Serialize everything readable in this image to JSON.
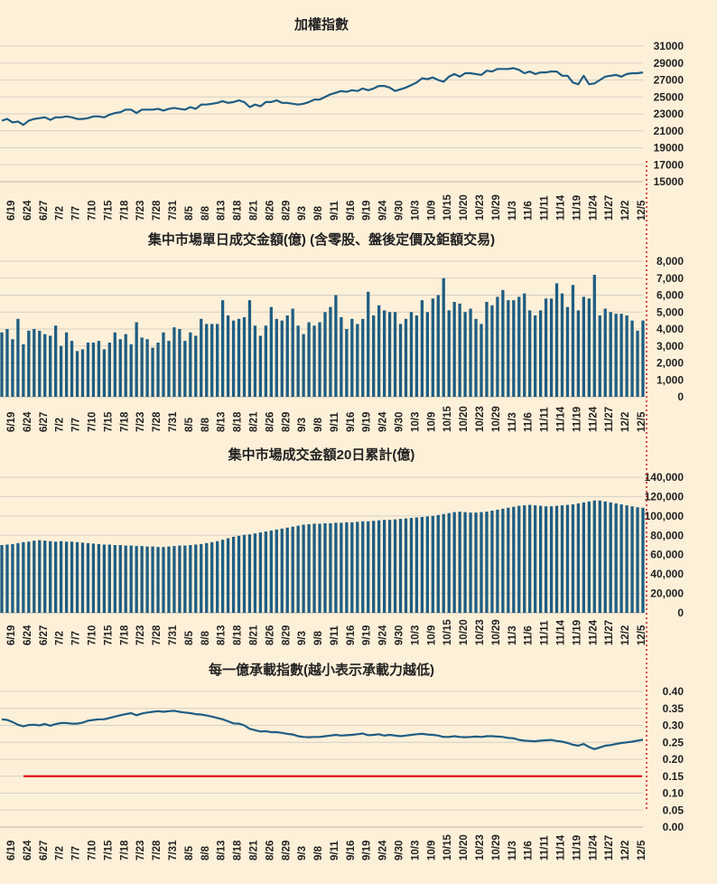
{
  "colors": {
    "background": "#fdf0d9",
    "series": "#1f5d82",
    "reference": "#e0141c",
    "marker": "#d0242b",
    "grid": "#d6d0c4"
  },
  "x_labels": [
    "6/19",
    "6/24",
    "6/27",
    "7/2",
    "7/7",
    "7/10",
    "7/15",
    "7/18",
    "7/23",
    "7/28",
    "7/31",
    "8/5",
    "8/8",
    "8/13",
    "8/18",
    "8/21",
    "8/26",
    "8/29",
    "9/3",
    "9/8",
    "9/11",
    "9/16",
    "9/19",
    "9/24",
    "9/30",
    "10/3",
    "10/9",
    "10/15",
    "10/20",
    "10/23",
    "10/29",
    "11/3",
    "11/6",
    "11/11",
    "11/14",
    "11/19",
    "11/24",
    "11/27",
    "12/2",
    "12/5"
  ],
  "chart_data": [
    {
      "id": "taiex",
      "type": "line",
      "title": "加權指數",
      "ylim": [
        15000,
        31000
      ],
      "yticks": [
        15000,
        17000,
        19000,
        21000,
        23000,
        25000,
        27000,
        29000,
        31000
      ],
      "series": [
        {
          "name": "加權指數",
          "values": [
            22200,
            22400,
            22000,
            22100,
            21700,
            22200,
            22400,
            22500,
            22600,
            22300,
            22600,
            22600,
            22700,
            22600,
            22400,
            22400,
            22500,
            22700,
            22700,
            22600,
            22900,
            23100,
            23200,
            23500,
            23500,
            23100,
            23500,
            23500,
            23500,
            23600,
            23400,
            23600,
            23700,
            23600,
            23500,
            23800,
            23600,
            24100,
            24100,
            24200,
            24300,
            24500,
            24300,
            24400,
            24600,
            24400,
            23800,
            24100,
            23900,
            24400,
            24400,
            24600,
            24300,
            24300,
            24200,
            24100,
            24200,
            24400,
            24700,
            24700,
            25000,
            25300,
            25500,
            25700,
            25600,
            25800,
            25700,
            26000,
            25800,
            26000,
            26300,
            26300,
            26100,
            25700,
            25900,
            26100,
            26400,
            26700,
            27200,
            27100,
            27300,
            27000,
            26800,
            27400,
            27700,
            27400,
            27800,
            27800,
            27700,
            27600,
            28100,
            28000,
            28300,
            28300,
            28300,
            28400,
            28200,
            27800,
            28000,
            27700,
            27900,
            27900,
            28000,
            28000,
            27500,
            27500,
            26700,
            26500,
            27500,
            26500,
            26600,
            27000,
            27400,
            27500,
            27600,
            27400,
            27700,
            27800,
            27800,
            27900
          ]
        }
      ]
    },
    {
      "id": "turnover",
      "type": "bar",
      "title": "集中市場單日成交金額(億) (含零股、盤後定價及鉅額交易)",
      "ylim": [
        0,
        8000
      ],
      "yticks": [
        0,
        1000,
        2000,
        3000,
        4000,
        5000,
        6000,
        7000,
        8000
      ],
      "series": [
        {
          "name": "單日成交金額",
          "values": [
            3800,
            4000,
            3400,
            4600,
            3100,
            3900,
            4000,
            3900,
            3700,
            3600,
            4200,
            3000,
            3800,
            3300,
            2700,
            2800,
            3200,
            3200,
            3300,
            2800,
            3200,
            3800,
            3400,
            3700,
            3100,
            4400,
            3500,
            3400,
            2900,
            3200,
            3800,
            3300,
            4100,
            4000,
            3300,
            3800,
            3600,
            4600,
            4300,
            4300,
            4300,
            5700,
            4800,
            4500,
            4600,
            4700,
            5700,
            4200,
            3600,
            4200,
            5300,
            4600,
            4500,
            4800,
            5200,
            4200,
            3700,
            4400,
            4200,
            4400,
            5000,
            5300,
            6000,
            4700,
            4000,
            4600,
            4300,
            4600,
            6200,
            4800,
            5400,
            5100,
            5000,
            5000,
            4300,
            4600,
            5000,
            4800,
            5700,
            5000,
            5800,
            6000,
            7000,
            5100,
            5600,
            5500,
            5000,
            5200,
            4600,
            4300,
            5600,
            5400,
            5900,
            6300,
            5700,
            5700,
            5900,
            6100,
            5100,
            4800,
            5100,
            5800,
            5800,
            6700,
            6100,
            5300,
            6600,
            5100,
            5900,
            5800,
            7200,
            4800,
            5200,
            5000,
            4900,
            4900,
            4800,
            4500,
            3900,
            4500
          ]
        }
      ]
    },
    {
      "id": "turnover20",
      "type": "bar",
      "title": "集中市場成交金額20日累計(億)",
      "ylim": [
        0,
        140000
      ],
      "yticks": [
        0,
        20000,
        40000,
        60000,
        80000,
        100000,
        120000,
        140000
      ],
      "series": [
        {
          "name": "20日累計",
          "values": [
            70000,
            70500,
            71000,
            72000,
            73000,
            73500,
            74500,
            75000,
            74500,
            74000,
            73500,
            74000,
            73500,
            73500,
            73000,
            72500,
            72000,
            71500,
            71000,
            70500,
            70500,
            70000,
            70000,
            69500,
            69500,
            69000,
            69000,
            68500,
            68500,
            68000,
            68000,
            68500,
            69000,
            69500,
            69500,
            70000,
            70500,
            71000,
            72000,
            73000,
            74000,
            75500,
            77000,
            78500,
            79500,
            80500,
            81000,
            82000,
            83000,
            84000,
            85000,
            86000,
            87000,
            88000,
            89000,
            90000,
            91000,
            91500,
            92000,
            92000,
            92500,
            92500,
            93000,
            93000,
            93500,
            93500,
            94000,
            94500,
            94500,
            95000,
            95500,
            96000,
            96000,
            96500,
            97000,
            97500,
            98000,
            98500,
            99000,
            99500,
            100000,
            101000,
            102000,
            103000,
            104000,
            104500,
            104000,
            103500,
            103500,
            104000,
            104500,
            105500,
            106500,
            107500,
            108500,
            109500,
            110500,
            111000,
            111500,
            111000,
            110500,
            110000,
            110000,
            110500,
            111000,
            111500,
            112000,
            113000,
            114000,
            115000,
            116000,
            116000,
            115000,
            114000,
            113000,
            112000,
            111000,
            110000,
            109000,
            108500
          ]
        }
      ]
    },
    {
      "id": "ratio",
      "type": "line",
      "title": "每一億承載指數(越小表示承載力越低)",
      "ylim": [
        0,
        0.4
      ],
      "yticks": [
        "0.00",
        "0.05",
        "0.10",
        "0.15",
        "0.20",
        "0.25",
        "0.30",
        "0.35",
        "0.40"
      ],
      "reference_line": 0.15,
      "series": [
        {
          "name": "每一億承載指數",
          "values": [
            0.318,
            0.316,
            0.31,
            0.302,
            0.297,
            0.301,
            0.302,
            0.3,
            0.304,
            0.299,
            0.304,
            0.307,
            0.307,
            0.305,
            0.305,
            0.308,
            0.314,
            0.316,
            0.318,
            0.318,
            0.322,
            0.326,
            0.33,
            0.333,
            0.336,
            0.33,
            0.335,
            0.338,
            0.34,
            0.342,
            0.34,
            0.342,
            0.343,
            0.34,
            0.338,
            0.336,
            0.333,
            0.332,
            0.329,
            0.326,
            0.322,
            0.318,
            0.312,
            0.306,
            0.305,
            0.3,
            0.29,
            0.286,
            0.282,
            0.283,
            0.28,
            0.28,
            0.278,
            0.275,
            0.273,
            0.268,
            0.266,
            0.265,
            0.266,
            0.266,
            0.268,
            0.27,
            0.272,
            0.27,
            0.271,
            0.272,
            0.274,
            0.276,
            0.271,
            0.272,
            0.274,
            0.27,
            0.272,
            0.27,
            0.268,
            0.27,
            0.272,
            0.274,
            0.275,
            0.273,
            0.272,
            0.27,
            0.266,
            0.266,
            0.268,
            0.266,
            0.265,
            0.266,
            0.267,
            0.266,
            0.268,
            0.268,
            0.267,
            0.266,
            0.263,
            0.262,
            0.257,
            0.255,
            0.254,
            0.253,
            0.255,
            0.256,
            0.257,
            0.254,
            0.252,
            0.248,
            0.243,
            0.24,
            0.245,
            0.236,
            0.23,
            0.235,
            0.24,
            0.242,
            0.245,
            0.248,
            0.25,
            0.252,
            0.255,
            0.258
          ]
        }
      ]
    }
  ]
}
